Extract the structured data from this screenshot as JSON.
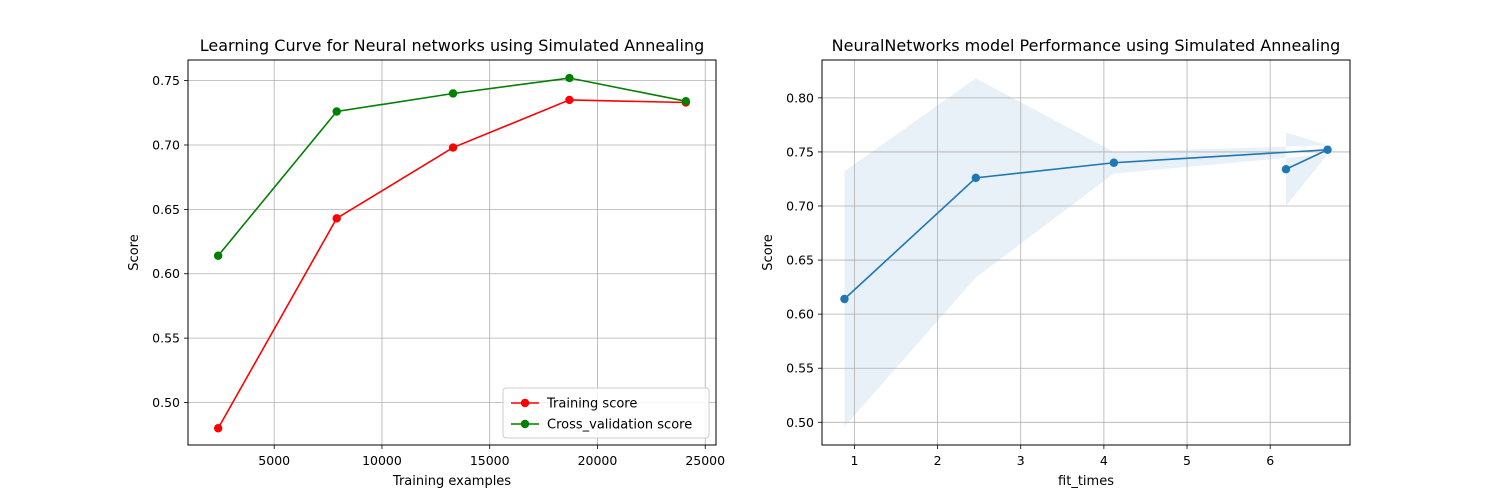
{
  "chart_data": [
    {
      "type": "line",
      "title": "Learning Curve for Neural networks using Simulated Annealing",
      "xlabel": "Training examples",
      "ylabel": "Score",
      "xlim": [
        1000,
        25500
      ],
      "ylim": [
        0.467,
        0.766
      ],
      "xticks": [
        5000,
        10000,
        15000,
        20000,
        25000
      ],
      "yticks": [
        0.5,
        0.55,
        0.6,
        0.65,
        0.7,
        0.75
      ],
      "grid": true,
      "legend": "lower-right",
      "series": [
        {
          "name": "Training score",
          "color": "#ff0000",
          "x": [
            2400,
            7900,
            13300,
            18700,
            24100
          ],
          "y": [
            0.48,
            0.643,
            0.698,
            0.735,
            0.733
          ]
        },
        {
          "name": "Cross_validation score",
          "color": "#008000",
          "x": [
            2400,
            7900,
            13300,
            18700,
            24100
          ],
          "y": [
            0.614,
            0.726,
            0.74,
            0.752,
            0.734
          ]
        }
      ]
    },
    {
      "type": "line",
      "title": "NeuralNetworks model Performance using Simulated Annealing",
      "xlabel": "fit_times",
      "ylabel": "Score",
      "xlim": [
        0.61,
        6.96
      ],
      "ylim": [
        0.479,
        0.835
      ],
      "xticks": [
        1,
        2,
        3,
        4,
        5,
        6
      ],
      "yticks": [
        0.5,
        0.55,
        0.6,
        0.65,
        0.7,
        0.75,
        0.8
      ],
      "grid": true,
      "series": [
        {
          "color": "#1f77b4",
          "x": [
            0.88,
            2.46,
            4.12,
            6.69,
            6.19
          ],
          "y": [
            0.614,
            0.726,
            0.74,
            0.752,
            0.734
          ],
          "band_lower": [
            0.496,
            0.634,
            0.73,
            0.748,
            0.7
          ],
          "band_upper": [
            0.732,
            0.818,
            0.75,
            0.756,
            0.768
          ],
          "band_color": "#e8f0f8"
        }
      ]
    }
  ]
}
